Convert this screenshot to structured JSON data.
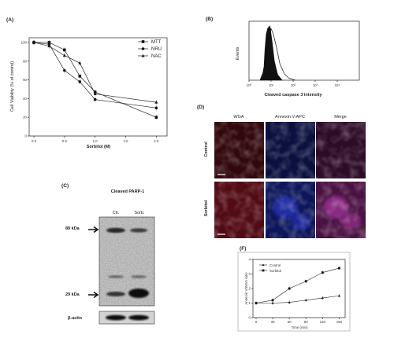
{
  "panels": {
    "a": "(A)",
    "b": "(B)",
    "c": "(C)",
    "d": "(D)",
    "f": "(F)"
  },
  "chart_data": [
    {
      "type": "line",
      "xlabel": "Sorbitol (M)",
      "ylabel": "Cell Viability (% of control)",
      "x": [
        0,
        0.25,
        0.5,
        0.75,
        1.0,
        2.0
      ],
      "xticks": [
        "0.0",
        "0.5",
        "1.0",
        "1.5",
        "2.0"
      ],
      "xtick_values": [
        0,
        0.5,
        1.0,
        1.5,
        2.0
      ],
      "yticks": [
        "0",
        "20",
        "40",
        "60",
        "80",
        "100"
      ],
      "ylim": [
        0,
        105
      ],
      "legend_position": "top-right",
      "series": [
        {
          "name": "MTT",
          "marker": "square",
          "values": [
            100,
            100,
            92,
            64,
            47,
            20
          ]
        },
        {
          "name": "NRU",
          "marker": "circle",
          "values": [
            100,
            98,
            70,
            58,
            39,
            30
          ]
        },
        {
          "name": "NAC",
          "marker": "triangle",
          "values": [
            100,
            96,
            86,
            78,
            45,
            36
          ]
        }
      ]
    },
    {
      "type": "area",
      "xlabel": "Cleaved caspase 3 intensity",
      "ylabel": "Events",
      "xscale": "log",
      "xticks": [
        "10⁰",
        "10¹",
        "10²",
        "10³",
        "10⁴"
      ],
      "series": [
        {
          "name": "",
          "fill": "filled",
          "x": [
            0.5,
            0.62,
            0.68,
            0.72,
            0.78,
            0.85,
            0.95,
            1.05,
            1.15,
            1.3,
            1.5
          ],
          "values": [
            0,
            0.12,
            0.25,
            0.55,
            0.85,
            0.96,
            1.0,
            0.7,
            0.35,
            0.1,
            0
          ]
        },
        {
          "name": "",
          "fill": "outline",
          "x": [
            0.5,
            0.7,
            0.8,
            0.9,
            1.0,
            1.1,
            1.25,
            1.4,
            1.6,
            1.8,
            2.1
          ],
          "values": [
            0,
            0.2,
            0.5,
            0.8,
            0.95,
            0.85,
            0.6,
            0.3,
            0.12,
            0.04,
            0
          ]
        }
      ]
    },
    {
      "type": "line",
      "xlabel": "Time (min)",
      "ylabel": "Annexin V/WGA ratio",
      "x": [
        0,
        30,
        60,
        90,
        120,
        150
      ],
      "xticks": [
        "0",
        "30",
        "60",
        "90",
        "120",
        "150"
      ],
      "yticks": [
        "0",
        "1",
        "2",
        "3",
        "4"
      ],
      "ylim": [
        0,
        4
      ],
      "legend_position": "top-left",
      "series": [
        {
          "name": "Control",
          "marker": "triangle",
          "values": [
            1.0,
            1.0,
            1.05,
            1.2,
            1.35,
            1.5
          ]
        },
        {
          "name": "Sorbitol",
          "marker": "square",
          "values": [
            1.0,
            1.2,
            2.0,
            2.5,
            3.1,
            3.4
          ]
        }
      ]
    }
  ],
  "blot": {
    "title": "Cleaved PARP-1",
    "lanes": [
      "Ctr.",
      "Sorb."
    ],
    "markers": [
      "89 kDa",
      "29 kDa"
    ],
    "loading": "β-actin"
  },
  "micro": {
    "columns": [
      "WGA",
      "Annexin V-APC",
      "Merge"
    ],
    "rows": [
      "Control",
      "Sorbitol"
    ],
    "colors": {
      "wga": "#9a1222",
      "annexin": "#1626a8",
      "merge": "#8a1e7a"
    }
  }
}
